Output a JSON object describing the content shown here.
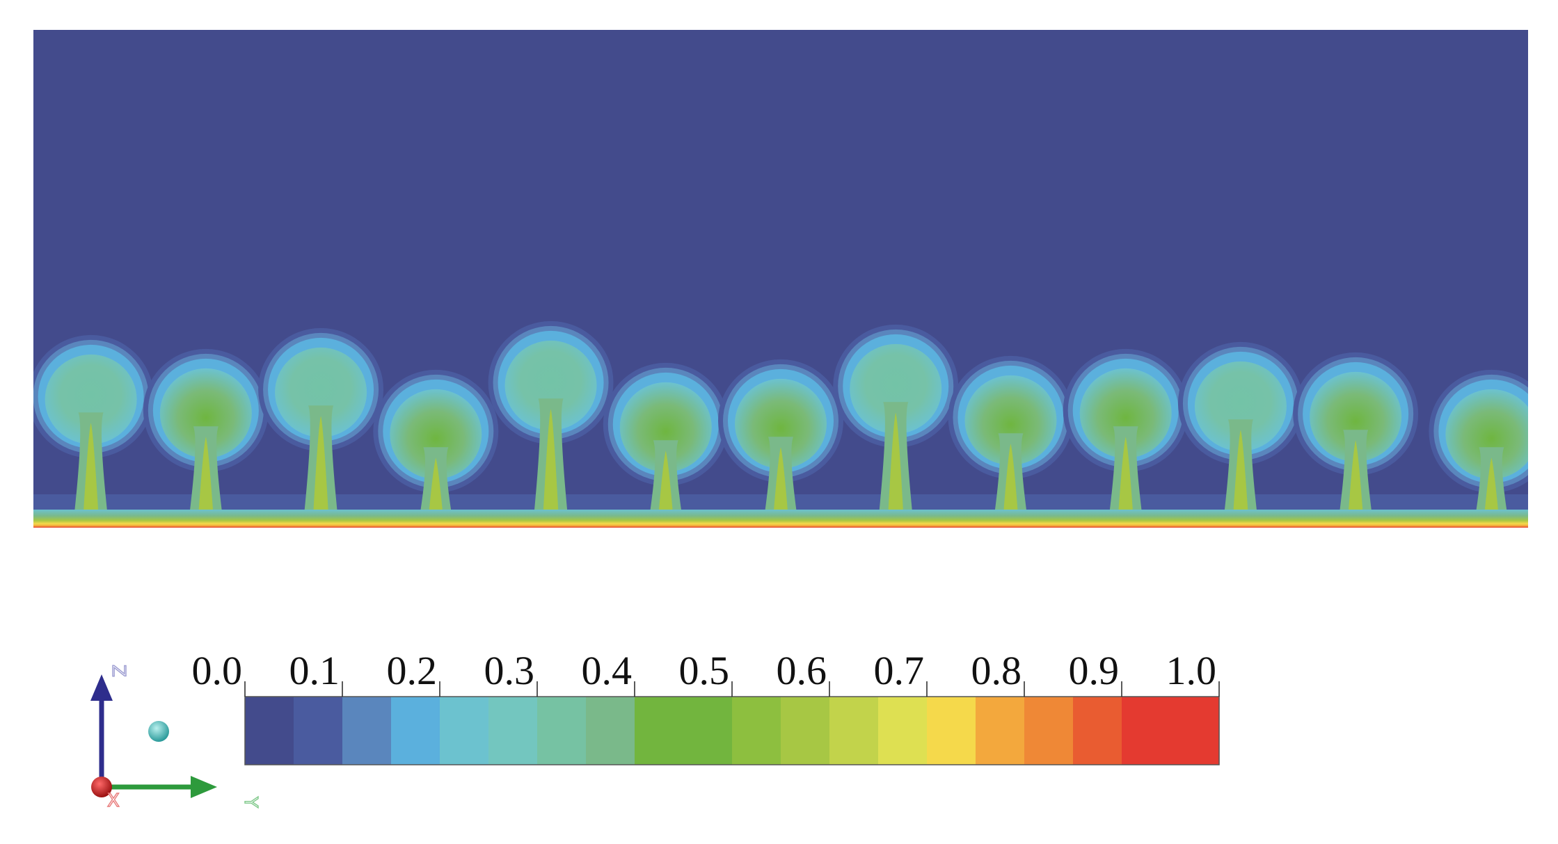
{
  "contour_plot": {
    "background_color": "#434b8c",
    "plume_count": 13,
    "field_range": [
      0.0,
      1.0
    ]
  },
  "colorbar": {
    "tick_labels": [
      "0.0",
      "0.1",
      "0.2",
      "0.3",
      "0.4",
      "0.5",
      "0.6",
      "0.7",
      "0.8",
      "0.9",
      "1.0"
    ],
    "band_colors": [
      "#434b8c",
      "#4a5b9f",
      "#5a86bd",
      "#5bb0dd",
      "#6cc2cf",
      "#73c6bf",
      "#76c2a3",
      "#7ab98a",
      "#72b53e",
      "#72b53e",
      "#8dbf3f",
      "#a7c744",
      "#c2d34b",
      "#dee052",
      "#f5d94b",
      "#f3a83d",
      "#ef8836",
      "#e95c31",
      "#e43a30",
      "#e43a30"
    ]
  },
  "axes_triad": {
    "z_label": "Z",
    "y_label": "Y",
    "x_label": "X",
    "z_color": "#2e2d8c",
    "y_color": "#2d9a3c",
    "x_color": "#d8262b"
  }
}
